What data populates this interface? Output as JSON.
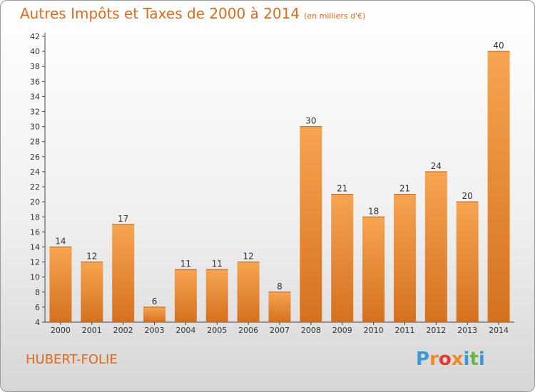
{
  "title": "Autres Impôts et Taxes de 2000 à 2014",
  "subtitle": "(en milliers d'€)",
  "commune": "HUBERT-FOLIE",
  "logo": {
    "letters": [
      "P",
      "r",
      "o",
      "x",
      "i",
      "t",
      "i"
    ],
    "colors": [
      "#3a9ad9",
      "#f08a24",
      "#e23b2e",
      "#f08a24",
      "#3a9ad9",
      "#6cb33f",
      "#3a9ad9"
    ]
  },
  "colors": {
    "accent": "#e06a1a",
    "bar_light": "#f7a450",
    "bar_dark": "#d4711f"
  },
  "chart_data": {
    "type": "bar",
    "categories": [
      "2000",
      "2001",
      "2002",
      "2003",
      "2004",
      "2005",
      "2006",
      "2007",
      "2008",
      "2009",
      "2010",
      "2011",
      "2012",
      "2013",
      "2014"
    ],
    "values": [
      14,
      12,
      17,
      6,
      11,
      11,
      12,
      8,
      30,
      21,
      18,
      21,
      24,
      20,
      40
    ],
    "ylim": [
      4,
      42
    ],
    "yticks": [
      4,
      6,
      8,
      10,
      12,
      14,
      16,
      18,
      20,
      22,
      24,
      26,
      28,
      30,
      32,
      34,
      36,
      38,
      40,
      42
    ],
    "grid": false,
    "xlabel": "",
    "ylabel": ""
  }
}
